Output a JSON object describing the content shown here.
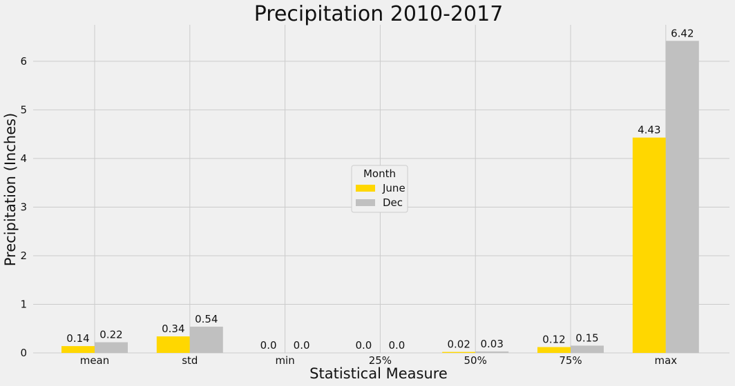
{
  "chart_data": {
    "type": "bar",
    "title": "Precipitation 2010-2017",
    "xlabel": "Statistical Measure",
    "ylabel": "Precipitation (Inches)",
    "categories": [
      "mean",
      "std",
      "min",
      "25%",
      "50%",
      "75%",
      "max"
    ],
    "series": [
      {
        "name": "June",
        "color": "#ffd700",
        "values": [
          0.14,
          0.34,
          0.0,
          0.0,
          0.02,
          0.12,
          4.43
        ],
        "labels": [
          "0.14",
          "0.34",
          "0.0",
          "0.0",
          "0.02",
          "0.12",
          "4.43"
        ]
      },
      {
        "name": "Dec",
        "color": "#c0c0c0",
        "values": [
          0.22,
          0.54,
          0.0,
          0.0,
          0.03,
          0.15,
          6.42
        ],
        "labels": [
          "0.22",
          "0.54",
          "0.0",
          "0.0",
          "0.03",
          "0.15",
          "6.42"
        ]
      }
    ],
    "ylim": [
      0,
      6.75
    ],
    "yticks": [
      0,
      1,
      2,
      3,
      4,
      5,
      6
    ],
    "grid": true,
    "legend": {
      "title": "Month",
      "placement": "center"
    }
  }
}
